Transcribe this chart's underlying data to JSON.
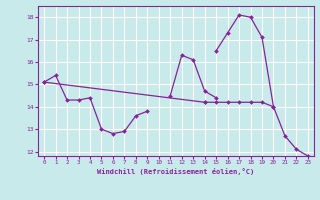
{
  "background_color": "#c8eaea",
  "grid_color": "#ffffff",
  "line_color": "#882299",
  "xlabel": "Windchill (Refroidissement éolien,°C)",
  "xlim": [
    -0.5,
    23.5
  ],
  "ylim": [
    11.8,
    18.5
  ],
  "yticks": [
    12,
    13,
    14,
    15,
    16,
    17,
    18
  ],
  "xticks": [
    0,
    1,
    2,
    3,
    4,
    5,
    6,
    7,
    8,
    9,
    10,
    11,
    12,
    13,
    14,
    15,
    16,
    17,
    18,
    19,
    20,
    21,
    22,
    23
  ],
  "connected_series": [
    {
      "x": [
        0,
        1,
        2,
        3,
        4,
        5,
        6,
        7,
        8,
        9
      ],
      "y": [
        15.1,
        15.4,
        14.3,
        14.3,
        14.4,
        13.0,
        12.8,
        12.9,
        13.6,
        13.8
      ]
    },
    {
      "x": [
        11,
        12,
        13,
        14,
        15
      ],
      "y": [
        14.5,
        16.3,
        16.1,
        14.7,
        14.4
      ]
    },
    {
      "x": [
        15,
        16,
        17,
        18,
        19,
        20,
        21,
        22,
        23
      ],
      "y": [
        16.5,
        17.3,
        18.1,
        18.0,
        17.1,
        14.0,
        12.7,
        12.1,
        11.8
      ]
    },
    {
      "x": [
        0,
        14
      ],
      "y": [
        15.1,
        14.2
      ]
    },
    {
      "x": [
        14,
        15,
        16,
        17,
        18,
        19,
        20
      ],
      "y": [
        14.2,
        14.2,
        14.2,
        14.2,
        14.2,
        14.2,
        14.0
      ]
    }
  ]
}
